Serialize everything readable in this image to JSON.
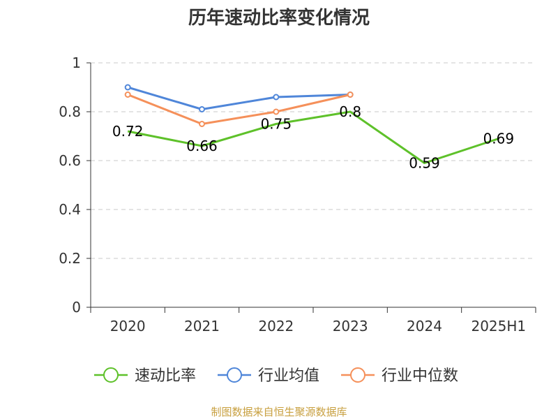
{
  "chart_data": {
    "type": "line",
    "title": "历年速动比率变化情况",
    "categories": [
      "2020",
      "2021",
      "2022",
      "2023",
      "2024",
      "2025H1"
    ],
    "ylim": [
      0,
      1
    ],
    "yticks": [
      "0",
      "0.2",
      "0.4",
      "0.6",
      "0.8",
      "1"
    ],
    "ytick_values": [
      0,
      0.2,
      0.4,
      0.6,
      0.8,
      1
    ],
    "grid": true,
    "legend_position": "bottom",
    "series": [
      {
        "name": "速动比率",
        "color": "#5ec12a",
        "values": [
          0.72,
          0.66,
          0.75,
          0.8,
          0.59,
          0.69
        ],
        "labels": [
          "0.72",
          "0.66",
          "0.75",
          "0.8",
          "0.59",
          "0.69"
        ]
      },
      {
        "name": "行业均值",
        "color": "#4f86d9",
        "values": [
          0.9,
          0.81,
          0.86,
          0.87,
          null,
          null
        ]
      },
      {
        "name": "行业中位数",
        "color": "#f5905a",
        "values": [
          0.87,
          0.75,
          0.8,
          0.87,
          null,
          null
        ]
      }
    ]
  },
  "source": "制图数据来自恒生聚源数据库"
}
